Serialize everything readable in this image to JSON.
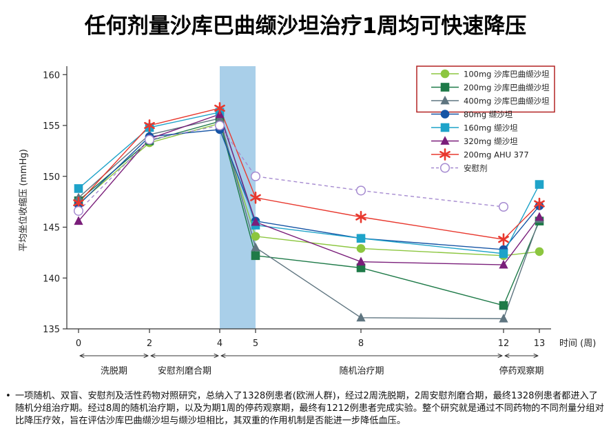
{
  "title": "任何剂量沙库巴曲缬沙坦治疗1周均可快速降压",
  "note": "一项随机、双盲、安慰剂及活性药物对照研究，总纳入了1328例患者(欧洲人群)，经过2周洗脱期，2周安慰剂磨合期，最终1328例患者都进入了随机分组治疗期。经过8周的随机治疗期，以及为期1周的停药观察期，最终有1212例患者完成实验。整个研究就是通过不同药物的不同剂量分组对比降压疗效，旨在评估沙库巴曲缬沙坦与缬沙坦相比，其双重的作用机制是否能进一步降低血压。",
  "chart_data": {
    "type": "line",
    "ylabel": "平均坐位收缩压 (mmHg)",
    "xlabel": "时间 (周)",
    "x": [
      0,
      2,
      4,
      5,
      8,
      12,
      13
    ],
    "xlim": [
      0,
      13
    ],
    "ylim": [
      135,
      160
    ],
    "yticks": [
      135,
      140,
      145,
      150,
      155,
      160
    ],
    "xticks": [
      0,
      2,
      4,
      5,
      8,
      12,
      13
    ],
    "shaded_region": [
      4,
      5
    ],
    "shaded_color": "#a9cfe9",
    "highlight_box_color": "#b22222",
    "highlighted_series_count": 3,
    "legend_position": "top-right",
    "phases": [
      {
        "label": "洗脱期",
        "from": 0,
        "to": 2
      },
      {
        "label": "安慰剂磨合期",
        "from": 2,
        "to": 4
      },
      {
        "label": "随机治疗期",
        "from": 4,
        "to": 12
      },
      {
        "label": "停药观察期",
        "from": 12,
        "to": 13
      }
    ],
    "series": [
      {
        "name": "100mg 沙库巴曲缬沙坦",
        "marker": "circle",
        "color": "#8cc63f",
        "dashed": false,
        "values": [
          147.3,
          153.3,
          155.2,
          144.1,
          142.9,
          142.2,
          142.6
        ]
      },
      {
        "name": "200mg 沙库巴曲缬沙坦",
        "marker": "square",
        "color": "#1e7a48",
        "dashed": false,
        "values": [
          147.6,
          153.5,
          155.4,
          142.2,
          141.0,
          137.3,
          145.6
        ]
      },
      {
        "name": "400mg 沙库巴曲缬沙坦",
        "marker": "triangle",
        "color": "#5f7580",
        "dashed": false,
        "values": [
          147.9,
          154.1,
          155.7,
          143.0,
          136.1,
          136.0,
          145.8
        ]
      },
      {
        "name": "80mg 缬沙坦",
        "marker": "circle",
        "color": "#1554a5",
        "dashed": false,
        "values": [
          147.2,
          153.9,
          154.6,
          145.6,
          143.9,
          142.8,
          147.1
        ]
      },
      {
        "name": "160mg 缬沙坦",
        "marker": "square",
        "color": "#1ea3c9",
        "dashed": false,
        "values": [
          148.8,
          154.8,
          156.3,
          145.2,
          143.9,
          142.4,
          149.2
        ]
      },
      {
        "name": "320mg 缬沙坦",
        "marker": "triangle",
        "color": "#7a1e7a",
        "dashed": false,
        "values": [
          145.6,
          153.7,
          156.1,
          145.5,
          141.6,
          141.3,
          146.0
        ]
      },
      {
        "name": "200mg AHU 377",
        "marker": "star",
        "color": "#e8382e",
        "dashed": false,
        "values": [
          147.4,
          155.0,
          156.7,
          147.9,
          146.0,
          143.8,
          147.3
        ]
      },
      {
        "name": "安慰剂",
        "marker": "open-circle",
        "color": "#a58ad0",
        "dashed": true,
        "values": [
          146.6,
          153.6,
          155.0,
          150.0,
          148.6,
          147.0,
          null
        ]
      }
    ]
  }
}
